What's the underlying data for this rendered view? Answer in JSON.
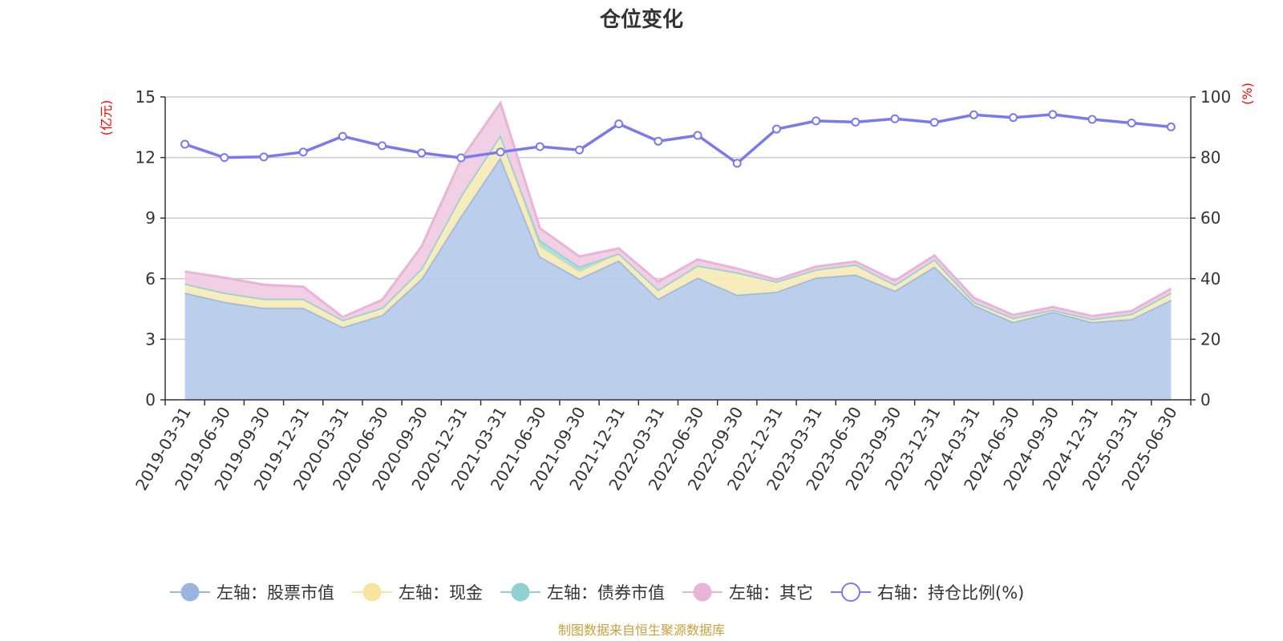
{
  "chart_data": {
    "type": "area",
    "title": "仓位变化",
    "left_axis_unit": "(亿元)",
    "right_axis_unit": "(%)",
    "categories": [
      "2019-03-31",
      "2019-06-30",
      "2019-09-30",
      "2019-12-31",
      "2020-03-31",
      "2020-06-30",
      "2020-09-30",
      "2020-12-31",
      "2021-03-31",
      "2021-06-30",
      "2021-09-30",
      "2021-12-31",
      "2022-03-31",
      "2022-06-30",
      "2022-09-30",
      "2022-12-31",
      "2023-03-31",
      "2023-06-30",
      "2023-09-30",
      "2023-12-31",
      "2024-03-31",
      "2024-06-30",
      "2024-09-30",
      "2024-12-31",
      "2025-03-31",
      "2025-06-30"
    ],
    "left_ylim": [
      0,
      15
    ],
    "left_yticks": [
      0,
      3,
      6,
      9,
      12,
      15
    ],
    "right_ylim": [
      0,
      100
    ],
    "right_yticks": [
      0,
      20,
      40,
      60,
      80,
      100
    ],
    "grid": true,
    "legend_position": "bottom",
    "series": [
      {
        "name": "左轴：股票市值",
        "axis": "left",
        "stack": true,
        "color": "#9ab6e0",
        "fill": "#b7cbea",
        "values": [
          5.3,
          4.85,
          4.55,
          4.55,
          3.6,
          4.2,
          6.0,
          9.1,
          12.0,
          7.1,
          6.0,
          6.9,
          5.0,
          6.05,
          5.2,
          5.35,
          6.05,
          6.2,
          5.4,
          6.6,
          4.7,
          3.85,
          4.35,
          3.85,
          4.0,
          4.95
        ]
      },
      {
        "name": "左轴：现金",
        "axis": "left",
        "stack": true,
        "color": "#f7e4a0",
        "fill": "#f7ebb8",
        "values": [
          0.45,
          0.45,
          0.45,
          0.45,
          0.35,
          0.35,
          0.5,
          1.0,
          1.1,
          0.5,
          0.35,
          0.35,
          0.45,
          0.6,
          1.1,
          0.5,
          0.4,
          0.5,
          0.3,
          0.35,
          0.15,
          0.2,
          0.1,
          0.15,
          0.25,
          0.35
        ]
      },
      {
        "name": "左轴：债券市值",
        "axis": "left",
        "stack": true,
        "color": "#8fd0d2",
        "fill": "#a9dcdd",
        "values": [
          0,
          0,
          0,
          0,
          0,
          0,
          0,
          0,
          0,
          0.3,
          0.25,
          0,
          0,
          0,
          0,
          0,
          0,
          0,
          0,
          0,
          0,
          0,
          0,
          0,
          0,
          0
        ]
      },
      {
        "name": "左轴：其它",
        "axis": "left",
        "stack": true,
        "color": "#e8b4d8",
        "fill": "#f0cde4",
        "values": [
          0.6,
          0.75,
          0.7,
          0.6,
          0.15,
          0.4,
          1.1,
          1.8,
          1.6,
          0.6,
          0.5,
          0.25,
          0.4,
          0.3,
          0.2,
          0.1,
          0.15,
          0.15,
          0.2,
          0.2,
          0.2,
          0.15,
          0.15,
          0.15,
          0.15,
          0.2
        ]
      },
      {
        "name": "右轴：持仓比例(%)",
        "axis": "right",
        "stack": false,
        "color": "#7b79ef",
        "values": [
          84.4,
          80.0,
          80.2,
          81.8,
          87.0,
          83.9,
          81.5,
          79.9,
          81.8,
          83.6,
          82.5,
          91.1,
          85.4,
          87.3,
          78.1,
          89.4,
          92.1,
          91.7,
          92.8,
          91.6,
          94.1,
          93.2,
          94.2,
          92.6,
          91.4,
          90.1
        ]
      }
    ],
    "source": "制图数据来自恒生聚源数据库"
  }
}
